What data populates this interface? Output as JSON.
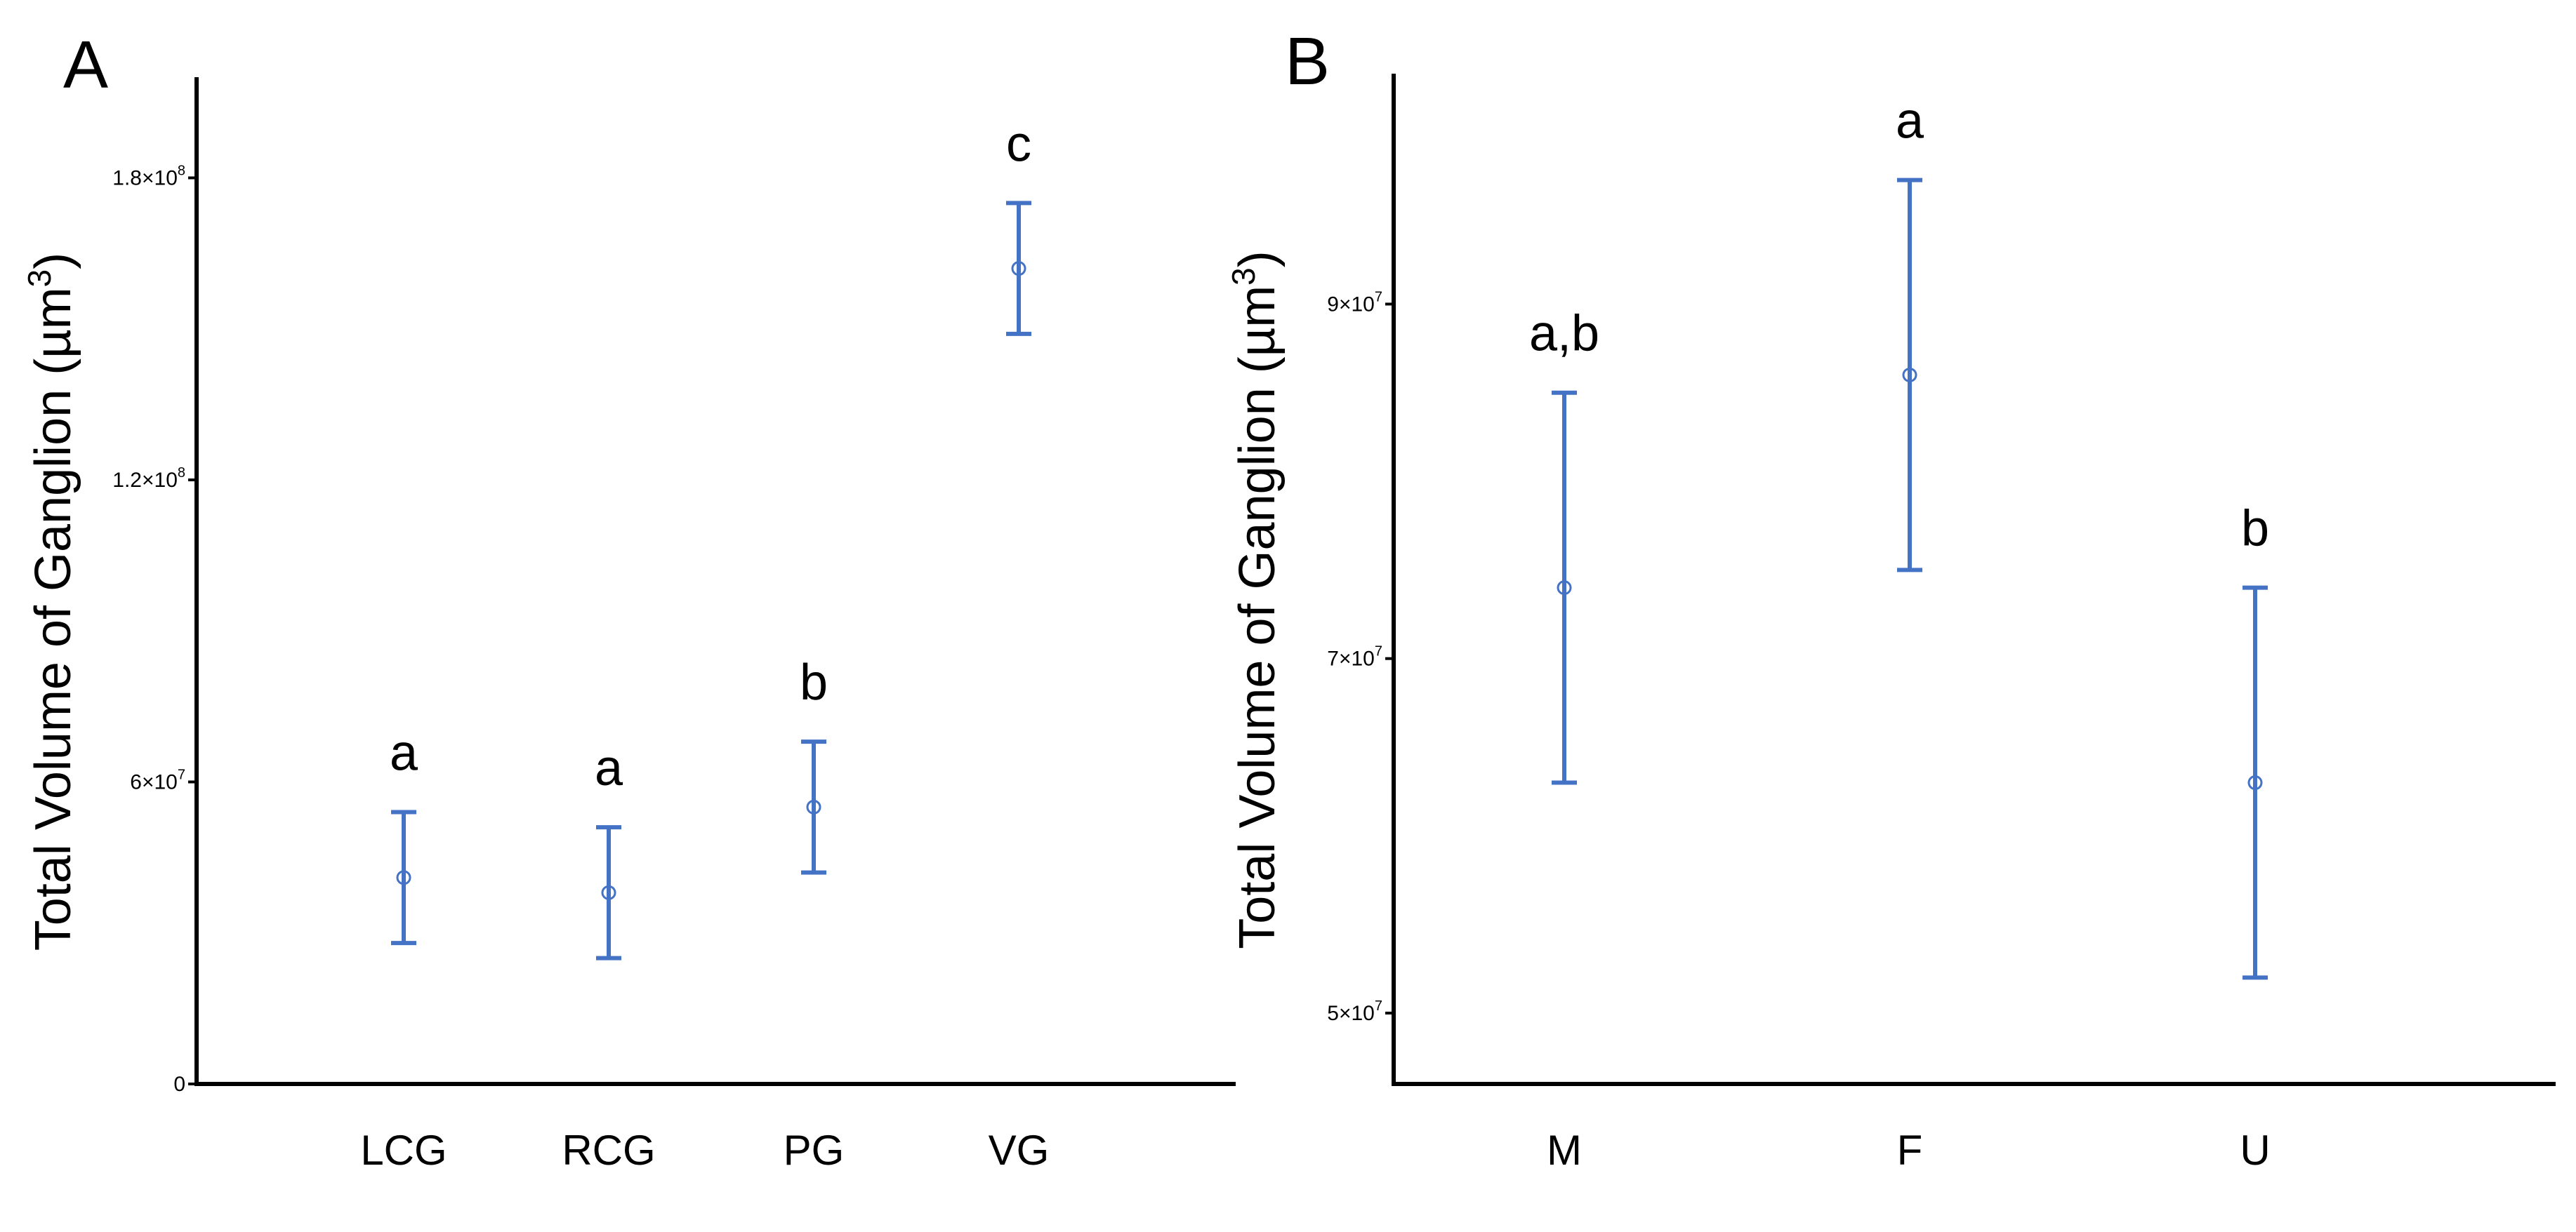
{
  "colors": {
    "series": "#4472C4",
    "axis": "#000000",
    "text": "#000000"
  },
  "chart_data": [
    {
      "type": "scatter",
      "panel_label": "A",
      "ylabel": "Total Volume of Ganglion (µm³)",
      "ylabel_parts": {
        "base": "Total Volume of Ganglion (µm",
        "sup": "3",
        "close": ")"
      },
      "xlabel": "",
      "ylim": [
        0,
        200000000
      ],
      "yticks": [
        {
          "value": 0,
          "mantissa": "0",
          "exp": ""
        },
        {
          "value": 60000000,
          "mantissa": "6×10",
          "exp": "7"
        },
        {
          "value": 120000000,
          "mantissa": "1.2×10",
          "exp": "8"
        },
        {
          "value": 180000000,
          "mantissa": "1.8×10",
          "exp": "8"
        }
      ],
      "categories": [
        "LCG",
        "RCG",
        "PG",
        "VG"
      ],
      "means": [
        41000000,
        38000000,
        55000000,
        162000000
      ],
      "err_low": [
        28000000,
        25000000,
        42000000,
        149000000
      ],
      "err_high": [
        54000000,
        51000000,
        68000000,
        175000000
      ],
      "significance": [
        "a",
        "a",
        "b",
        "c"
      ],
      "grid": false
    },
    {
      "type": "scatter",
      "panel_label": "B",
      "ylabel": "Total Volume of Ganglion (µm³)",
      "ylabel_parts": {
        "base": "Total Volume of Ganglion (µm",
        "sup": "3",
        "close": ")"
      },
      "xlabel": "",
      "ylim": [
        46000000,
        103000000
      ],
      "yticks": [
        {
          "value": 50000000,
          "mantissa": "5×10",
          "exp": "7"
        },
        {
          "value": 70000000,
          "mantissa": "7×10",
          "exp": "7"
        },
        {
          "value": 90000000,
          "mantissa": "9×10",
          "exp": "7"
        }
      ],
      "categories": [
        "M",
        "F",
        "U"
      ],
      "means": [
        74000000,
        86000000,
        63000000
      ],
      "err_low": [
        63000000,
        75000000,
        52000000
      ],
      "err_high": [
        85000000,
        97000000,
        74000000
      ],
      "significance": [
        "a,b",
        "a",
        "b"
      ],
      "grid": false
    }
  ]
}
